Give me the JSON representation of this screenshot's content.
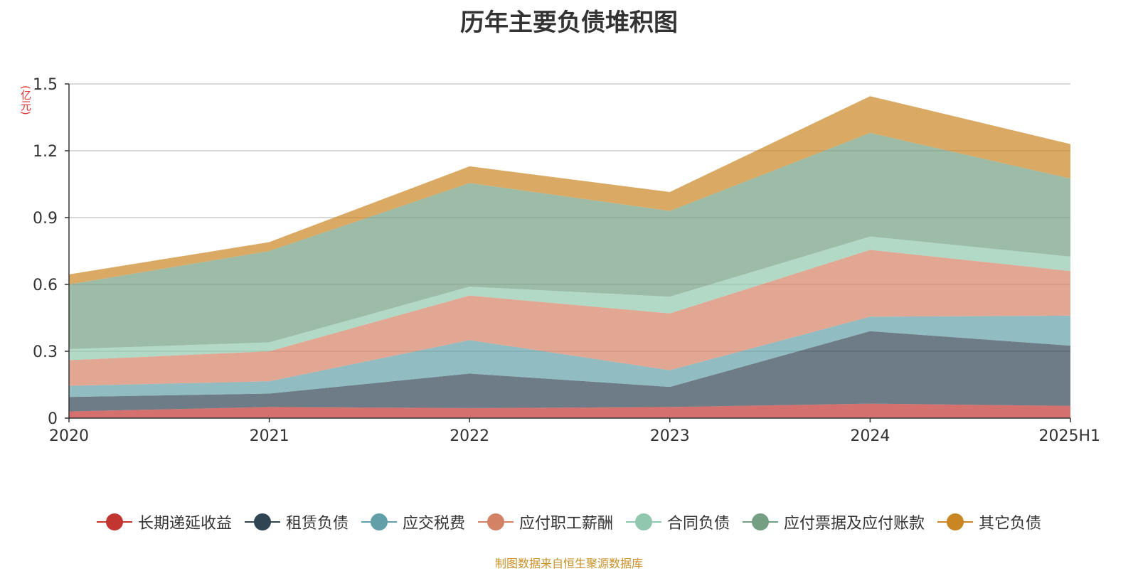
{
  "chart_data": {
    "type": "area",
    "stacked": true,
    "title": "历年主要负债堆积图",
    "unit_label": "(亿元)",
    "source": "制图数据来自恒生聚源数据库",
    "categories": [
      "2020",
      "2021",
      "2022",
      "2023",
      "2024",
      "2025H1"
    ],
    "ylim": [
      0,
      1.5
    ],
    "yticks": [
      0,
      0.3,
      0.6,
      0.9,
      1.2,
      1.5
    ],
    "ytick_labels": [
      "0",
      "0.3",
      "0.6",
      "0.9",
      "1.2",
      "1.5"
    ],
    "grid": true,
    "legend_position": "bottom",
    "series": [
      {
        "name": "长期递延收益",
        "color": "#c23531",
        "values": [
          0.03,
          0.05,
          0.045,
          0.05,
          0.065,
          0.055
        ]
      },
      {
        "name": "租赁负债",
        "color": "#2f4554",
        "values": [
          0.065,
          0.06,
          0.155,
          0.09,
          0.325,
          0.27
        ]
      },
      {
        "name": "应交税费",
        "color": "#61a0a8",
        "values": [
          0.05,
          0.055,
          0.15,
          0.075,
          0.065,
          0.135
        ]
      },
      {
        "name": "应付职工薪酬",
        "color": "#d48265",
        "values": [
          0.115,
          0.135,
          0.2,
          0.255,
          0.3,
          0.2
        ]
      },
      {
        "name": "合同负债",
        "color": "#91c7ae",
        "values": [
          0.05,
          0.04,
          0.04,
          0.075,
          0.06,
          0.065
        ]
      },
      {
        "name": "应付票据及应付账款",
        "color": "#749f83",
        "values": [
          0.29,
          0.41,
          0.465,
          0.385,
          0.465,
          0.35
        ]
      },
      {
        "name": "其它负债",
        "color": "#ca8622",
        "values": [
          0.045,
          0.04,
          0.075,
          0.085,
          0.165,
          0.155
        ]
      }
    ]
  }
}
